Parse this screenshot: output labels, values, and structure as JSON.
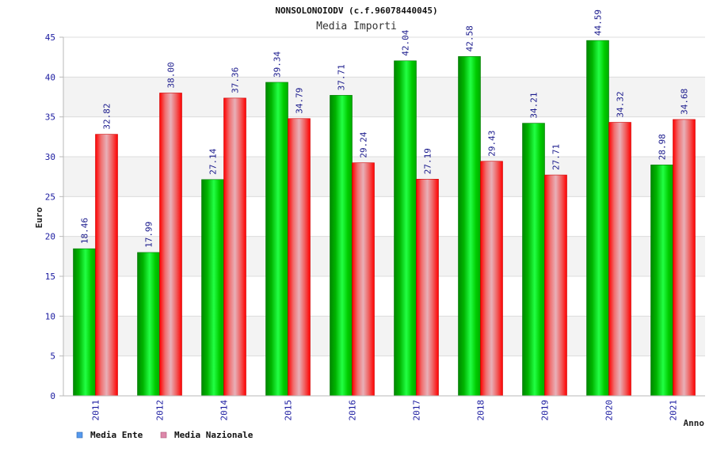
{
  "chart_data": {
    "type": "bar",
    "title": "NONSOLONOIODV (c.f.96078440045)",
    "subtitle": "Media Importi",
    "xlabel": "Anno",
    "ylabel": "Euro",
    "ylim": [
      0,
      45
    ],
    "yticks": [
      "0",
      "5",
      "10",
      "15",
      "20",
      "25",
      "30",
      "35",
      "40",
      "45"
    ],
    "grid": true,
    "legend_position": "bottom-left",
    "categories": [
      "2011",
      "2012",
      "2014",
      "2015",
      "2016",
      "2017",
      "2018",
      "2019",
      "2020",
      "2021"
    ],
    "series": [
      {
        "name": "Media Ente",
        "color": "#00aa00",
        "legend_color": "#5599ee",
        "values": [
          18.46,
          17.99,
          27.14,
          39.34,
          37.71,
          42.04,
          42.58,
          34.21,
          44.59,
          28.98
        ],
        "labels": [
          "18.46",
          "17.99",
          "27.14",
          "39.34",
          "37.71",
          "42.04",
          "42.58",
          "34.21",
          "44.59",
          "28.98"
        ]
      },
      {
        "name": "Media Nazionale",
        "color": "#ee2233",
        "legend_color": "#dd88aa",
        "values": [
          32.82,
          38.0,
          37.36,
          34.79,
          29.24,
          27.19,
          29.43,
          27.71,
          34.32,
          34.68
        ],
        "labels": [
          "32.82",
          "38.00",
          "37.36",
          "34.79",
          "29.24",
          "27.19",
          "29.43",
          "27.71",
          "34.32",
          "34.68"
        ]
      }
    ]
  }
}
